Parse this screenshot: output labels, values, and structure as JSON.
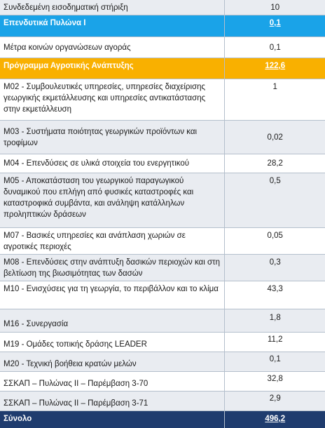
{
  "rows": [
    {
      "label": "Συνδεδεμένη εισοδηματική στήριξη",
      "value": "10"
    },
    {
      "label": "Επενδυτικά Πυλώνα Ι",
      "value": "0,1"
    },
    {
      "label": "Μέτρα κοινών οργανώσεων αγοράς",
      "value": "0,1"
    },
    {
      "label": "Πρόγραμμα Αγροτικής Ανάπτυξης",
      "value": "122,6"
    },
    {
      "label": "Μ02 - Συμβουλευτικές υπηρεσίες, υπηρεσίες διαχείρισης γεωργικής εκμετάλλευσης και υπηρεσίες αντικατάστασης στην εκμετάλλευση",
      "value": "1"
    },
    {
      "label": "Μ03 - Συστήματα ποιότητας γεωργικών προϊόντων και τροφίμων",
      "value": "0,02"
    },
    {
      "label": "Μ04 - Επενδύσεις σε υλικά στοιχεία του ενεργητικού",
      "value": "28,2"
    },
    {
      "label": "Μ05 - Αποκατάσταση του γεωργικού παραγωγικού δυναμικού που επλήγη από φυσικές καταστροφές και καταστροφικά συμβάντα, και ανάληψη κατάλληλων προληπτικών δράσεων",
      "value": "0,5"
    },
    {
      "label": "Μ07 - Βασικές υπηρεσίες και ανάπλαση χωριών σε αγροτικές περιοχές",
      "value": "0,05"
    },
    {
      "label": "Μ08 - Επενδύσεις στην ανάπτυξη δασικών περιοχών και στη βελτίωση της βιωσιμότητας των δασών",
      "value": "0,3"
    },
    {
      "label": "Μ10 - Ενισχύσεις για τη γεωργία, το περιβάλλον και το κλίμα",
      "value": "43,3"
    },
    {
      "label": "Μ16 - Συνεργασία",
      "value": "1,8"
    },
    {
      "label": "Μ19 - Ομάδες τοπικής δράσης LEADER",
      "value": "11,2"
    },
    {
      "label": "Μ20 - Τεχνική βοήθεια κρατών μελών",
      "value": "0,1"
    },
    {
      "label": "ΣΣΚΑΠ – Πυλώνας ΙΙ – Παρέμβαση 3-70",
      "value": "32,8"
    },
    {
      "label": "ΣΣΚΑΠ – Πυλώνας ΙΙ – Παρέμβαση 3-71",
      "value": "2,9"
    },
    {
      "label": "Σύνολο",
      "value": "496,2"
    }
  ],
  "colors": {
    "blue_header": "#1aa3e8",
    "orange_header": "#f9b000",
    "total": "#1f3c6e",
    "stripe": "#e9ecf1"
  }
}
